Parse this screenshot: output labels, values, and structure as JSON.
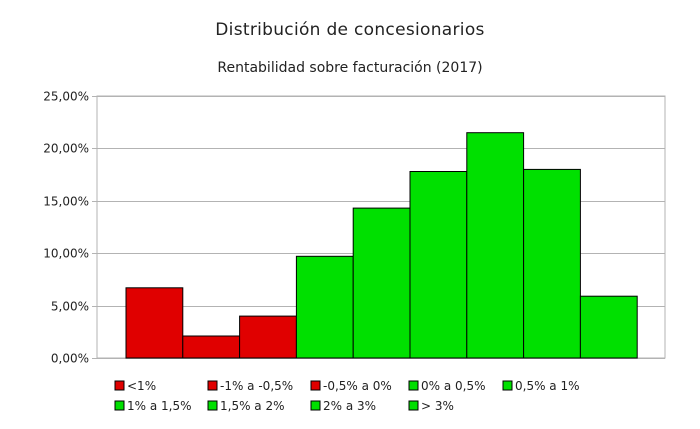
{
  "chart_data": {
    "type": "bar",
    "title": "Distribución de concesionarios",
    "subtitle": "Rentabilidad sobre facturación (2017)",
    "xlabel": "",
    "ylabel": "",
    "ylim": [
      0,
      25
    ],
    "y_ticks": [
      "0,00%",
      "5,00%",
      "10,00%",
      "15,00%",
      "20,00%",
      "25,00%"
    ],
    "y_tick_values": [
      0,
      5,
      10,
      15,
      20,
      25
    ],
    "grid": true,
    "legend_position": "bottom",
    "categories": [
      "<1%",
      "-1% a -0,5%",
      "-0,5% a 0%",
      "0% a 0,5%",
      "0,5% a 1%",
      "1% a 1,5%",
      "1,5% a 2%",
      "2% a 3%",
      "> 3%"
    ],
    "values": [
      6.7,
      2.1,
      4.0,
      9.7,
      14.3,
      17.8,
      21.5,
      18.0,
      5.9
    ],
    "colors": [
      "#e00000",
      "#e00000",
      "#e00000",
      "#00e000",
      "#00e000",
      "#00e000",
      "#00e000",
      "#00e000",
      "#00e000"
    ],
    "stroke_color": "#000000",
    "grid_color": "#b3b3b3"
  }
}
